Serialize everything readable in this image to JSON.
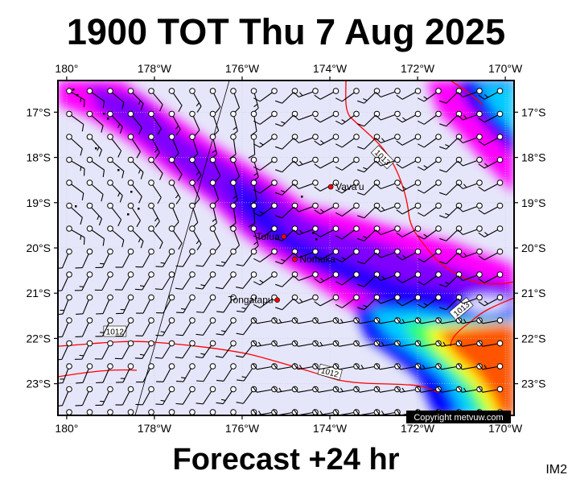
{
  "title": "1900 TOT Thu 7 Aug 2025",
  "subtitle": "Forecast +24 hr",
  "corner_label": "IM2",
  "copyright": "Copyright metvuw.com",
  "map": {
    "lon_range": [
      -180.2,
      -169.8
    ],
    "lat_range": [
      -16.3,
      -23.7
    ],
    "lon_ticks": [
      {
        "lon": -180,
        "label": "180°"
      },
      {
        "lon": -178,
        "label": "178°W"
      },
      {
        "lon": -176,
        "label": "176°W"
      },
      {
        "lon": -174,
        "label": "174°W"
      },
      {
        "lon": -172,
        "label": "172°W"
      },
      {
        "lon": -170,
        "label": "170°W"
      }
    ],
    "lat_ticks": [
      {
        "lat": -17,
        "label": "17°S"
      },
      {
        "lat": -18,
        "label": "18°S"
      },
      {
        "lat": -19,
        "label": "19°S"
      },
      {
        "lat": -20,
        "label": "20°S"
      },
      {
        "lat": -21,
        "label": "21°S"
      },
      {
        "lat": -22,
        "label": "22°S"
      },
      {
        "lat": -23,
        "label": "23°S"
      }
    ],
    "places": [
      {
        "name": "Vava'u",
        "lon": -173.98,
        "lat": -18.65
      },
      {
        "name": "Tofua",
        "lon": -175.05,
        "lat": -19.75
      },
      {
        "name": "Nomuka",
        "lon": -174.8,
        "lat": -20.25
      },
      {
        "name": "Tongatapu",
        "lon": -175.2,
        "lat": -21.15
      }
    ],
    "isobars": [
      {
        "label": "1013",
        "label_lon": -172.8,
        "label_lat": -18.0
      },
      {
        "label": "1013",
        "label_lon": -171.0,
        "label_lat": -21.35
      },
      {
        "label": "1012",
        "label_lon": -178.9,
        "label_lat": -21.85
      },
      {
        "label": "1012",
        "label_lon": -174.0,
        "label_lat": -22.75
      }
    ],
    "colors": {
      "background": "#e6e6fa",
      "magenta": "#ff00ff",
      "violet": "#8000ff",
      "blue": "#0000ff",
      "cyan": "#00ccff",
      "green": "#33ff66",
      "yellow": "#ffff00",
      "orange": "#ff5500",
      "isobar": "#ff0000"
    }
  }
}
